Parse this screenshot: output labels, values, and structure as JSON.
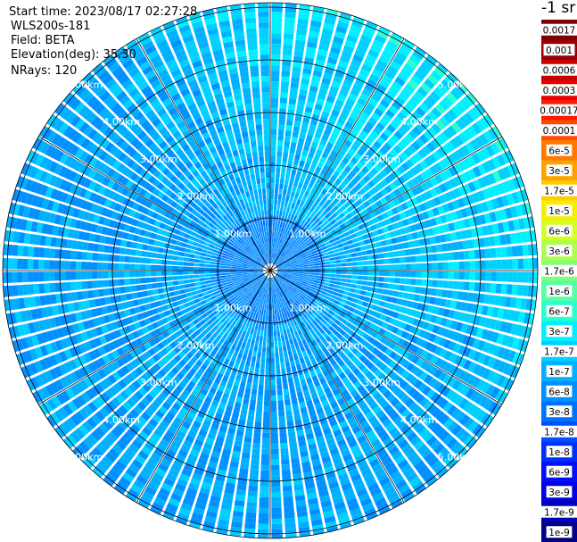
{
  "info": {
    "start_time": "Start time: 2023/08/17 02:27:28",
    "radar": "WLS200s-181",
    "field": "Field: BETA",
    "elevation": "Elevation(deg): 35.30",
    "nrays": "NRays: 120"
  },
  "colorbar": {
    "title": "-1 sr",
    "labels": [
      "0.0017",
      "0.001",
      "0.0006",
      "0.0003",
      "0.00017",
      "0.0001",
      "6e-5",
      "3e-5",
      "1.7e-5",
      "1e-5",
      "6e-6",
      "3e-6",
      "1.7e-6",
      "1e-6",
      "6e-7",
      "3e-7",
      "1.7e-7",
      "1e-7",
      "6e-8",
      "3e-8",
      "1.7e-8",
      "1e-8",
      "6e-9",
      "3e-9",
      "1.7e-9",
      "1e-9"
    ],
    "colors": [
      "#7f0000",
      "#9a0000",
      "#c40000",
      "#e80000",
      "#ff1a00",
      "#ff4a00",
      "#ff7800",
      "#ffa200",
      "#ffcc00",
      "#f4ee00",
      "#d2ff24",
      "#a8ff4e",
      "#7fff7a",
      "#55ffa4",
      "#2bffd0",
      "#00f0ff",
      "#00d0ff",
      "#00b0ff",
      "#0090ff",
      "#0070ff",
      "#0050ff",
      "#0030ff",
      "#0010ff",
      "#0000e0",
      "#0000b4",
      "#000088"
    ]
  },
  "range_labels": [
    "1.00km",
    "2.00km",
    "3.00km",
    "4.00km",
    "5.00km"
  ],
  "num_rays": 120
}
